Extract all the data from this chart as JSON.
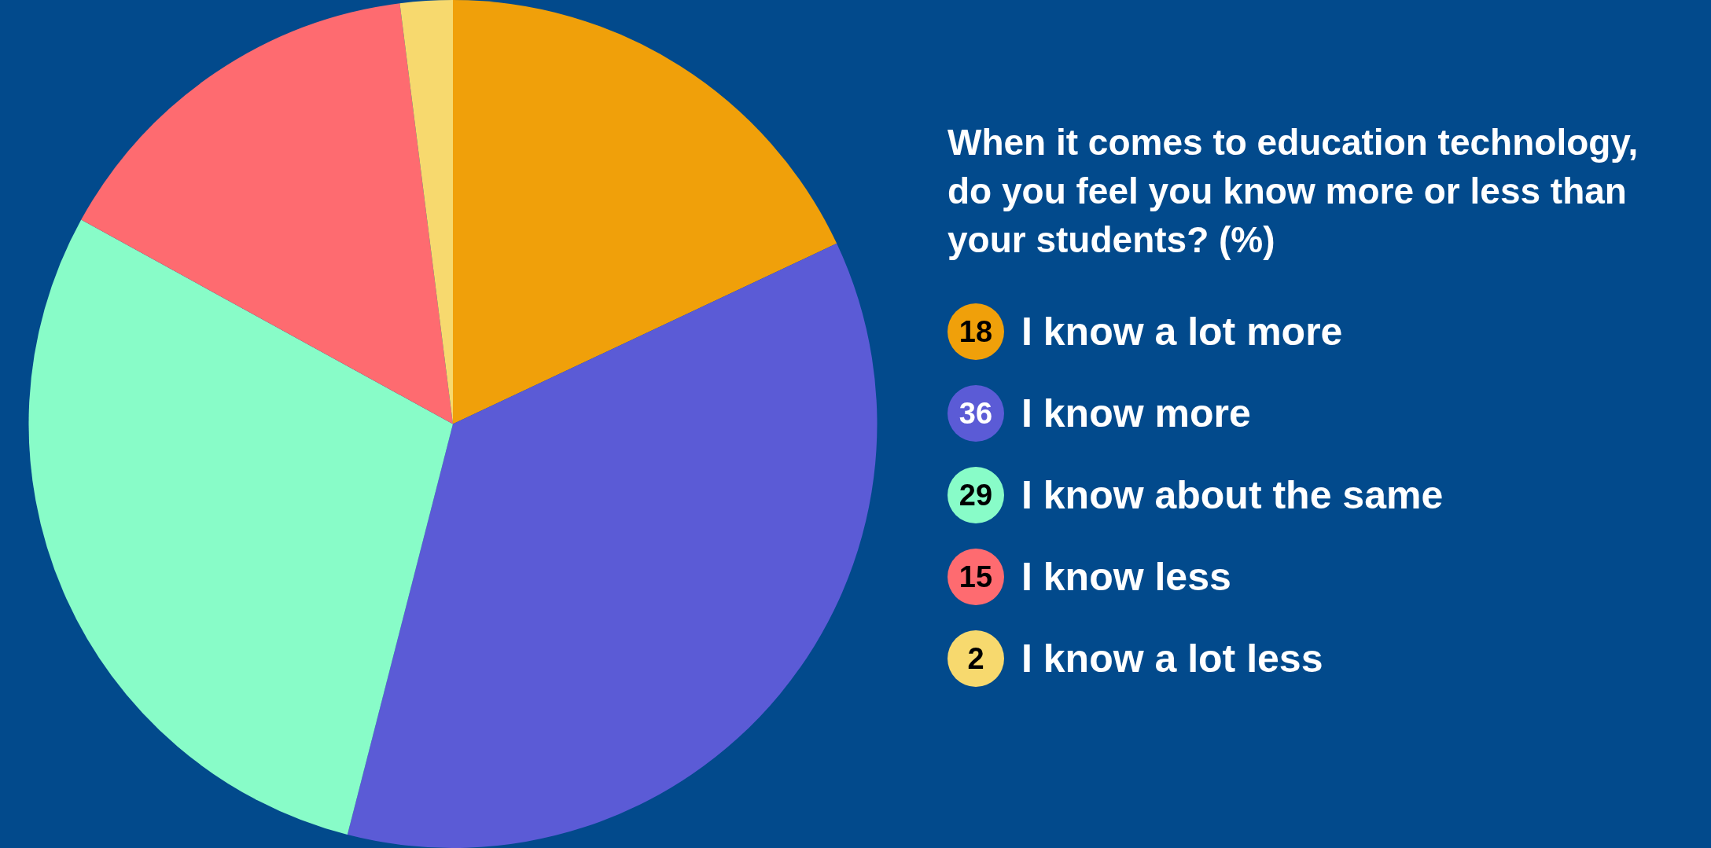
{
  "chart_data": {
    "type": "pie",
    "title": "When it comes to education technology, do you feel you know more or less than your students? (%)",
    "categories": [
      "I know a lot more",
      "I know more",
      "I know about the same",
      "I know less",
      "I know a lot less"
    ],
    "values": [
      18,
      36,
      29,
      15,
      2
    ],
    "colors": [
      "#f0a00a",
      "#5b5bd6",
      "#88fcc8",
      "#fe6b70",
      "#f7d96e"
    ],
    "legend": "right",
    "data_labels": true
  }
}
